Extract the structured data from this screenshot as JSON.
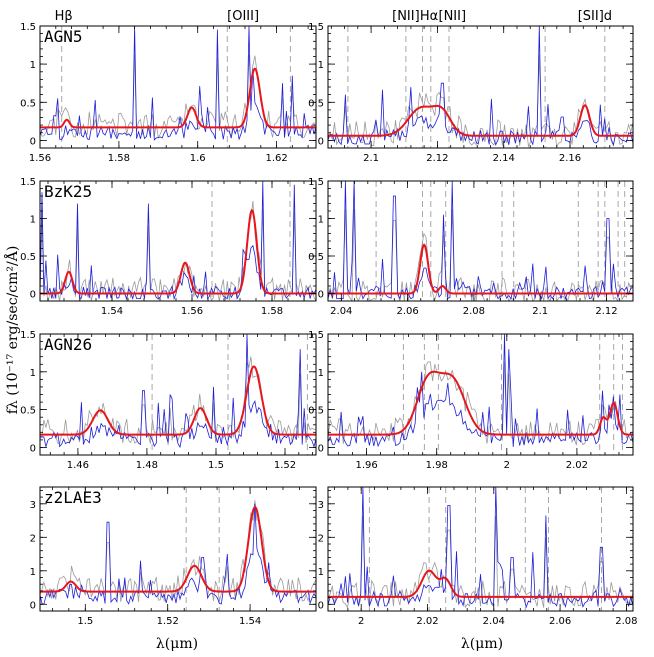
{
  "figure": {
    "ylabel": "fλ (10⁻¹⁷ erg/sec/cm²/Å)",
    "xlabel_left": "λ(μm)",
    "xlabel_right": "λ(μm)"
  },
  "colors": {
    "model": "#e8161b",
    "spectrum": "#1f1fd8",
    "noise": "#9b9b9b",
    "lines": "#a8a8a8"
  },
  "chart_data": [
    {
      "type": "line",
      "name": "AGN5",
      "panel": "left",
      "row": 0,
      "title": "AGN5",
      "xlim": [
        1.56,
        1.63
      ],
      "ylim": [
        -0.1,
        1.5
      ],
      "xticks": [
        1.56,
        1.58,
        1.6,
        1.62
      ],
      "xtick_labels": [
        "1.56",
        "1.58",
        "1.6",
        "1.62"
      ],
      "yticks": [
        0,
        0.5,
        1,
        1.5
      ],
      "ytick_labels": [
        "0",
        "0.5",
        "1",
        "1.5"
      ],
      "top_labels": [
        {
          "text": "Hβ",
          "x": 1.566
        },
        {
          "text": "[OIII]",
          "x": 1.6115
        }
      ],
      "dashed_lines": [
        1.5655,
        1.6075,
        1.6235
      ],
      "model_baseline": 0.17,
      "gaussians": [
        {
          "center": 1.5668,
          "amp": 0.1,
          "sigma": 0.0007
        },
        {
          "center": 1.5985,
          "amp": 0.26,
          "sigma": 0.0011
        },
        {
          "center": 1.6145,
          "amp": 0.77,
          "sigma": 0.0013
        }
      ],
      "spikes": [
        {
          "x": 1.5645,
          "y": 0.55
        },
        {
          "x": 1.584,
          "y": 1.5
        },
        {
          "x": 1.605,
          "y": 1.45
        },
        {
          "x": 1.613,
          "y": 1.5
        },
        {
          "x": 1.6215,
          "y": 0.75
        },
        {
          "x": 1.624,
          "y": 0.85
        }
      ],
      "seed": 11
    },
    {
      "type": "line",
      "name": "AGN5-Halpha",
      "panel": "right",
      "row": 0,
      "title": "",
      "xlim": [
        2.087,
        2.179
      ],
      "ylim": [
        -0.1,
        1.5
      ],
      "xticks": [
        2.1,
        2.12,
        2.14,
        2.16
      ],
      "xtick_labels": [
        "2.1",
        "2.12",
        "2.14",
        "2.16"
      ],
      "yticks": [
        0,
        0.5,
        1,
        1.5
      ],
      "ytick_labels": [
        "0",
        "0.5",
        "1",
        "1.5"
      ],
      "top_labels": [
        {
          "text": "[NII]",
          "x": 2.1105
        },
        {
          "text": "Hα",
          "x": 2.1175
        },
        {
          "text": "[NII]",
          "x": 2.1245
        },
        {
          "text": "[SII]d",
          "x": 2.1675
        }
      ],
      "dashed_lines": [
        2.093,
        2.1105,
        2.1155,
        2.118,
        2.1235,
        2.1525,
        2.1705
      ],
      "model_baseline": 0.06,
      "gaussians": [
        {
          "center": 2.115,
          "amp": 0.36,
          "sigma": 0.0038
        },
        {
          "center": 2.1215,
          "amp": 0.28,
          "sigma": 0.0027
        },
        {
          "center": 2.1645,
          "amp": 0.4,
          "sigma": 0.0014
        }
      ],
      "spikes": [
        {
          "x": 2.0925,
          "y": 0.6
        },
        {
          "x": 2.1215,
          "y": 0.75
        },
        {
          "x": 2.151,
          "y": 1.5
        }
      ],
      "seed": 23
    },
    {
      "type": "line",
      "name": "BzK25",
      "panel": "left",
      "row": 1,
      "title": "BzK25",
      "xlim": [
        1.522,
        1.591
      ],
      "ylim": [
        -0.1,
        1.5
      ],
      "xticks": [
        1.54,
        1.56,
        1.58
      ],
      "xtick_labels": [
        "1.54",
        "1.56",
        "1.58"
      ],
      "yticks": [
        0,
        0.5,
        1,
        1.5
      ],
      "ytick_labels": [
        "0",
        "0.5",
        "1",
        "1.5"
      ],
      "top_labels": [],
      "dashed_lines": [
        1.565,
        1.5845
      ],
      "model_baseline": 0.0,
      "gaussians": [
        {
          "center": 1.5292,
          "amp": 0.29,
          "sigma": 0.0009
        },
        {
          "center": 1.5583,
          "amp": 0.41,
          "sigma": 0.0011
        },
        {
          "center": 1.575,
          "amp": 1.11,
          "sigma": 0.0012
        }
      ],
      "spikes": [
        {
          "x": 1.5225,
          "y": 1.35
        },
        {
          "x": 1.5315,
          "y": 1.2
        },
        {
          "x": 1.549,
          "y": 1.2
        },
        {
          "x": 1.5775,
          "y": 1.5
        },
        {
          "x": 1.5855,
          "y": 1.45
        }
      ],
      "seed": 37
    },
    {
      "type": "line",
      "name": "BzK25-Halpha",
      "panel": "right",
      "row": 1,
      "title": "",
      "xlim": [
        2.036,
        2.128
      ],
      "ylim": [
        -0.1,
        1.5
      ],
      "xticks": [
        2.04,
        2.06,
        2.08,
        2.1,
        2.12
      ],
      "xtick_labels": [
        "2.04",
        "2.06",
        "2.08",
        "2.1",
        "2.12"
      ],
      "yticks": [
        0,
        0.5,
        1,
        1.5
      ],
      "ytick_labels": [
        "0",
        "0.5",
        "1",
        "1.5"
      ],
      "top_labels": [],
      "dashed_lines": [
        2.0505,
        2.0645,
        2.067,
        2.0715,
        2.0885,
        2.092,
        2.1115,
        2.1175,
        2.1195,
        2.1235,
        2.1255
      ],
      "model_baseline": 0.0,
      "gaussians": [
        {
          "center": 2.065,
          "amp": 0.65,
          "sigma": 0.0012
        },
        {
          "center": 2.0705,
          "amp": 0.1,
          "sigma": 0.001
        }
      ],
      "spikes": [
        {
          "x": 2.0415,
          "y": 1.5
        },
        {
          "x": 2.044,
          "y": 1.5
        },
        {
          "x": 2.056,
          "y": 1.3
        },
        {
          "x": 2.071,
          "y": 1.05
        },
        {
          "x": 2.0735,
          "y": 1.5
        },
        {
          "x": 2.1205,
          "y": 1.0
        }
      ],
      "seed": 53
    },
    {
      "type": "line",
      "name": "AGN26",
      "panel": "left",
      "row": 2,
      "title": "AGN26",
      "xlim": [
        1.449,
        1.529
      ],
      "ylim": [
        -0.1,
        1.5
      ],
      "xticks": [
        1.46,
        1.48,
        1.5,
        1.52
      ],
      "xtick_labels": [
        "1.46",
        "1.48",
        "1.5",
        "1.52"
      ],
      "yticks": [
        0,
        0.5,
        1,
        1.5
      ],
      "ytick_labels": [
        "0",
        "0.5",
        "1",
        "1.5"
      ],
      "top_labels": [],
      "dashed_lines": [
        1.4815,
        1.5035,
        1.5265
      ],
      "model_baseline": 0.17,
      "gaussians": [
        {
          "center": 1.4665,
          "amp": 0.32,
          "sigma": 0.0022
        },
        {
          "center": 1.4955,
          "amp": 0.35,
          "sigma": 0.0018
        },
        {
          "center": 1.511,
          "amp": 0.9,
          "sigma": 0.0021
        }
      ],
      "spikes": [
        {
          "x": 1.479,
          "y": 0.75
        },
        {
          "x": 1.4865,
          "y": 0.7
        },
        {
          "x": 1.4995,
          "y": 0.8
        },
        {
          "x": 1.509,
          "y": 1.5
        },
        {
          "x": 1.5245,
          "y": 1.3
        }
      ],
      "seed": 71
    },
    {
      "type": "line",
      "name": "AGN26-Halpha",
      "panel": "right",
      "row": 2,
      "title": "",
      "xlim": [
        1.949,
        2.036
      ],
      "ylim": [
        -0.1,
        1.5
      ],
      "xticks": [
        1.96,
        1.98,
        2,
        2.02
      ],
      "xtick_labels": [
        "1.96",
        "1.98",
        "2",
        "2.02"
      ],
      "yticks": [
        0,
        0.5,
        1,
        1.5
      ],
      "ytick_labels": [
        "0",
        "0.5",
        "1",
        "1.5"
      ],
      "top_labels": [],
      "dashed_lines": [
        1.9705,
        1.9765,
        1.9805,
        1.9985,
        2.0265,
        2.0305,
        2.033
      ],
      "model_baseline": 0.17,
      "gaussians": [
        {
          "center": 1.9775,
          "amp": 0.68,
          "sigma": 0.0032
        },
        {
          "center": 1.9845,
          "amp": 0.71,
          "sigma": 0.0036
        },
        {
          "center": 2.0275,
          "amp": 0.22,
          "sigma": 0.0009
        },
        {
          "center": 2.0305,
          "amp": 0.42,
          "sigma": 0.0011
        }
      ],
      "spikes": [
        {
          "x": 1.9755,
          "y": 1.0
        },
        {
          "x": 1.9995,
          "y": 1.5
        },
        {
          "x": 2.0005,
          "y": 1.3
        },
        {
          "x": 2.0275,
          "y": 0.75
        }
      ],
      "seed": 89
    },
    {
      "type": "line",
      "name": "z2LAE3",
      "panel": "left",
      "row": 3,
      "title": "z2LAE3",
      "xlim": [
        1.489,
        1.556
      ],
      "ylim": [
        -0.2,
        3.5
      ],
      "xticks": [
        1.5,
        1.52,
        1.54
      ],
      "xtick_labels": [
        "1.5",
        "1.52",
        "1.54"
      ],
      "yticks": [
        0,
        1,
        2,
        3
      ],
      "ytick_labels": [
        "0",
        "1",
        "2",
        "3"
      ],
      "top_labels": [],
      "dashed_lines": [
        1.5245,
        1.5325
      ],
      "model_baseline": 0.38,
      "gaussians": [
        {
          "center": 1.4965,
          "amp": 0.3,
          "sigma": 0.0012
        },
        {
          "center": 1.5265,
          "amp": 0.77,
          "sigma": 0.0017
        },
        {
          "center": 1.5412,
          "amp": 2.52,
          "sigma": 0.0016
        }
      ],
      "spikes": [
        {
          "x": 1.5055,
          "y": 2.45
        },
        {
          "x": 1.5135,
          "y": 1.3
        },
        {
          "x": 1.5285,
          "y": 1.4
        },
        {
          "x": 1.5345,
          "y": 1.5
        },
        {
          "x": 1.5445,
          "y": 1.25
        }
      ],
      "seed": 103
    },
    {
      "type": "line",
      "name": "z2LAE3-Halpha",
      "panel": "right",
      "row": 3,
      "title": "",
      "xlim": [
        1.99,
        2.082
      ],
      "ylim": [
        -0.2,
        3.5
      ],
      "xticks": [
        2,
        2.02,
        2.04,
        2.06,
        2.08
      ],
      "xtick_labels": [
        "2",
        "2.02",
        "2.04",
        "2.06",
        "2.08"
      ],
      "yticks": [
        0,
        1,
        2,
        3
      ],
      "ytick_labels": [
        "0",
        "1",
        "2",
        "3"
      ],
      "top_labels": [],
      "dashed_lines": [
        2.0025,
        2.0205,
        2.0255,
        2.0345,
        2.0495,
        2.0565,
        2.0725
      ],
      "model_baseline": 0.22,
      "gaussians": [
        {
          "center": 2.0205,
          "amp": 0.78,
          "sigma": 0.0022
        },
        {
          "center": 2.0255,
          "amp": 0.5,
          "sigma": 0.0016
        }
      ],
      "spikes": [
        {
          "x": 2.0005,
          "y": 3.5
        },
        {
          "x": 2.0265,
          "y": 2.95
        },
        {
          "x": 2.0405,
          "y": 3.5
        },
        {
          "x": 2.0455,
          "y": 1.4
        },
        {
          "x": 2.0555,
          "y": 2.65
        },
        {
          "x": 2.0725,
          "y": 1.7
        }
      ],
      "seed": 131
    }
  ]
}
